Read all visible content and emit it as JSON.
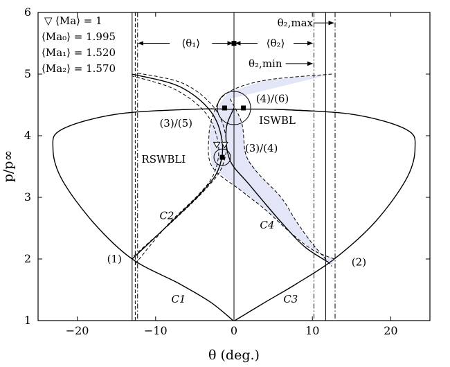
{
  "chart_data": {
    "type": "line",
    "xlabel": "θ (deg.)",
    "ylabel": "p/p∞",
    "xlim": [
      -25,
      25
    ],
    "ylim": [
      1,
      6
    ],
    "x_ticks": [
      -20,
      -10,
      0,
      10,
      20
    ],
    "y_ticks": [
      1,
      2,
      3,
      4,
      5,
      6
    ],
    "x_tick_labels": [
      "−20",
      "−10",
      "0",
      "10",
      "20"
    ],
    "y_tick_labels": [
      "1",
      "2",
      "3",
      "4",
      "5",
      "6"
    ],
    "grid": false,
    "legend_position": "top-left",
    "legend": [
      {
        "symbol": "▽",
        "text": "⟨Ma⟩ = 1"
      },
      {
        "symbol": "",
        "text": "⟨Ma₀⟩ = 1.995"
      },
      {
        "symbol": "",
        "text": "⟨Ma₁⟩ = 1.520"
      },
      {
        "symbol": "",
        "text": "⟨Ma₂⟩ = 1.570"
      }
    ],
    "series": [
      {
        "curve": "C1",
        "style": "solid",
        "points": [
          [
            -0.1,
            1.0
          ],
          [
            -3,
            1.3
          ],
          [
            -7,
            1.6
          ],
          [
            -13,
            2.0
          ],
          [
            -18,
            2.6
          ],
          [
            -22,
            3.3
          ],
          [
            -23.1,
            3.8
          ],
          [
            -22,
            4.1
          ],
          [
            -15,
            4.35
          ],
          [
            -5,
            4.43
          ],
          [
            0,
            4.43
          ],
          [
            5,
            4.43
          ],
          [
            10,
            4.4
          ]
        ]
      },
      {
        "curve": "C3",
        "style": "solid",
        "points": [
          [
            0.1,
            1.0
          ],
          [
            4,
            1.3
          ],
          [
            8,
            1.6
          ],
          [
            12.8,
            2.0
          ],
          [
            18,
            2.6
          ],
          [
            22,
            3.3
          ],
          [
            23.1,
            3.8
          ],
          [
            22,
            4.1
          ],
          [
            15,
            4.35
          ],
          [
            5,
            4.43
          ]
        ]
      },
      {
        "curve": "C2",
        "style": "solid",
        "points": [
          [
            -13,
            2.0
          ],
          [
            -8,
            2.6
          ],
          [
            -4,
            3.1
          ],
          [
            -2,
            3.45
          ],
          [
            -1.5,
            3.9
          ],
          [
            -3,
            4.4
          ],
          [
            -7,
            4.8
          ],
          [
            -13,
            5.0
          ]
        ]
      },
      {
        "curve": "C2-upper",
        "style": "dashed",
        "points": [
          [
            -12.8,
            2.05
          ],
          [
            -7.5,
            2.65
          ],
          [
            -3.5,
            3.15
          ],
          [
            -1.5,
            3.5
          ],
          [
            -1,
            3.95
          ],
          [
            -2.5,
            4.45
          ],
          [
            -6.5,
            4.85
          ],
          [
            -12.5,
            5.02
          ]
        ]
      },
      {
        "curve": "C2-lower",
        "style": "dashed",
        "points": [
          [
            -12.6,
            1.92
          ],
          [
            -8.5,
            2.55
          ],
          [
            -4.5,
            3.05
          ],
          [
            -2.5,
            3.4
          ],
          [
            -2,
            3.85
          ],
          [
            -3.5,
            4.35
          ],
          [
            -7.5,
            4.75
          ],
          [
            -13,
            4.97
          ]
        ]
      },
      {
        "curve": "C4",
        "style": "solid",
        "points": [
          [
            0,
            4.45
          ],
          [
            -1,
            4.1
          ],
          [
            -0.5,
            3.6
          ],
          [
            2,
            3.2
          ],
          [
            6,
            2.6
          ],
          [
            9,
            2.2
          ],
          [
            12,
            1.95
          ]
        ]
      },
      {
        "curve": "C4-band-upper",
        "style": "dashed",
        "points": [
          [
            12.5,
            5.0
          ],
          [
            4,
            4.9
          ],
          [
            -0.8,
            4.7
          ],
          [
            -2.5,
            4.4
          ],
          [
            -3.2,
            4.0
          ],
          [
            -2.8,
            3.5
          ],
          [
            1,
            3.1
          ],
          [
            4,
            2.8
          ],
          [
            7,
            2.45
          ],
          [
            10,
            2.15
          ],
          [
            12.8,
            2.0
          ]
        ]
      },
      {
        "curve": "C4-band-lower",
        "style": "dashed",
        "points": [
          [
            -0.5,
            4.6
          ],
          [
            1,
            4.2
          ],
          [
            1.5,
            3.7
          ],
          [
            3,
            3.4
          ],
          [
            6,
            3.0
          ],
          [
            8,
            2.6
          ],
          [
            10,
            2.25
          ],
          [
            12.5,
            1.88
          ]
        ]
      }
    ],
    "markers": [
      {
        "shape": "square",
        "x": 0,
        "y": 5.5
      },
      {
        "shape": "square",
        "x": -1.2,
        "y": 4.45
      },
      {
        "shape": "square",
        "x": 1.2,
        "y": 4.45
      },
      {
        "shape": "square",
        "x": -1.5,
        "y": 3.65
      },
      {
        "shape": "triangle-down-open",
        "x": -2.2,
        "y": 3.85
      },
      {
        "shape": "triangle-down-open",
        "x": -1.2,
        "y": 3.85
      },
      {
        "shape": "circle-open",
        "x": 0,
        "y": 4.45
      },
      {
        "shape": "circle-open",
        "x": -1.5,
        "y": 3.65
      }
    ],
    "vertical_lines": [
      {
        "x": -13.0,
        "style": "solid"
      },
      {
        "x": -12.6,
        "style": "dashed"
      },
      {
        "x": -12.3,
        "style": "dashdot"
      },
      {
        "x": 0,
        "style": "solid"
      },
      {
        "x": 10.2,
        "style": "dashdot"
      },
      {
        "x": 11.7,
        "style": "solid"
      },
      {
        "x": 12.9,
        "style": "dashdot"
      }
    ],
    "annotations": [
      {
        "text": "(1)",
        "x": -16.2,
        "y": 2.0
      },
      {
        "text": "(2)",
        "x": 15.0,
        "y": 1.95
      },
      {
        "text": "(3)/(5)",
        "x": -9.5,
        "y": 4.2
      },
      {
        "text": "(3)/(4)",
        "x": 1.4,
        "y": 3.8
      },
      {
        "text": "(4)/(6)",
        "x": 2.8,
        "y": 4.6
      },
      {
        "text": "ISWBL",
        "x": 3.2,
        "y": 4.25
      },
      {
        "text": "RSWBLI",
        "x": -11.8,
        "y": 3.62
      },
      {
        "text": "C2",
        "x": -9.5,
        "y": 2.7
      },
      {
        "text": "C4",
        "x": 3.3,
        "y": 2.55
      },
      {
        "text": "C1",
        "x": -8.0,
        "y": 1.35
      },
      {
        "text": "C3",
        "x": 6.3,
        "y": 1.35
      }
    ],
    "arrow_labels": {
      "theta1": "⟨θ₁⟩",
      "theta2": "⟨θ₂⟩",
      "theta2_max": "θ₂,max",
      "theta2_min": "θ₂,min"
    }
  }
}
